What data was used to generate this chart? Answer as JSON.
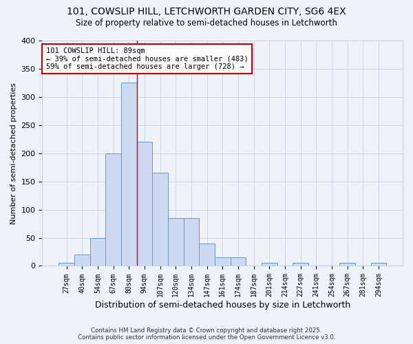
{
  "title1": "101, COWSLIP HILL, LETCHWORTH GARDEN CITY, SG6 4EX",
  "title2": "Size of property relative to semi-detached houses in Letchworth",
  "xlabel": "Distribution of semi-detached houses by size in Letchworth",
  "ylabel": "Number of semi-detached properties",
  "bin_labels": [
    "27sqm",
    "40sqm",
    "54sqm",
    "67sqm",
    "80sqm",
    "94sqm",
    "107sqm",
    "120sqm",
    "134sqm",
    "147sqm",
    "161sqm",
    "174sqm",
    "187sqm",
    "201sqm",
    "214sqm",
    "227sqm",
    "241sqm",
    "254sqm",
    "267sqm",
    "281sqm",
    "294sqm"
  ],
  "bin_values": [
    5,
    20,
    50,
    200,
    325,
    220,
    165,
    85,
    85,
    40,
    15,
    15,
    0,
    5,
    0,
    5,
    0,
    0,
    5,
    0,
    5
  ],
  "bar_color": "#ccd9f0",
  "bar_edge_color": "#6699cc",
  "red_line_bin": 5,
  "annotation_title": "101 COWSLIP HILL: 89sqm",
  "annotation_line1": "← 39% of semi-detached houses are smaller (483)",
  "annotation_line2": "59% of semi-detached houses are larger (728) →",
  "annotation_box_color": "#ffffff",
  "annotation_box_edge": "#cc0000",
  "footer1": "Contains HM Land Registry data © Crown copyright and database right 2025.",
  "footer2": "Contains public sector information licensed under the Open Government Licence v3.0.",
  "ylim": [
    0,
    400
  ],
  "yticks": [
    0,
    50,
    100,
    150,
    200,
    250,
    300,
    350,
    400
  ],
  "background_color": "#eef2fb",
  "grid_color": "#c8d4e8",
  "figsize": [
    6.0,
    5.0
  ],
  "dpi": 100
}
